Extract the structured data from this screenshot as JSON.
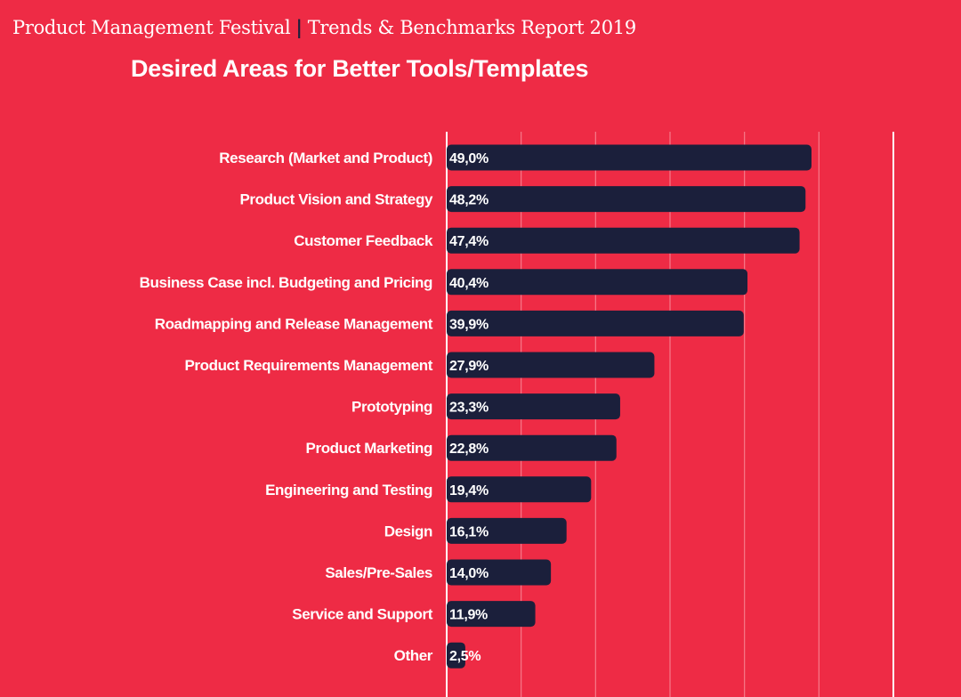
{
  "header": {
    "left": "Product Management Festival",
    "separator": "|",
    "right": "Trends & Benchmarks Report 2019"
  },
  "colors": {
    "background": "#ee2b45",
    "bar": "#1b1f3b",
    "text": "#ffffff"
  },
  "chart_data": {
    "type": "bar",
    "orientation": "horizontal",
    "title": "Desired Areas for Better Tools/Templates",
    "categories": [
      "Research (Market and Product)",
      "Product Vision and Strategy",
      "Customer Feedback",
      "Business Case incl. Budgeting and Pricing",
      "Roadmapping and Release Management",
      "Product Requirements Management",
      "Prototyping",
      "Product Marketing",
      "Engineering and Testing",
      "Design",
      "Sales/Pre-Sales",
      "Service and Support",
      "Other"
    ],
    "values": [
      49.0,
      48.2,
      47.4,
      40.4,
      39.9,
      27.9,
      23.3,
      22.8,
      19.4,
      16.1,
      14.0,
      11.9,
      2.5
    ],
    "data_labels": [
      "49,0%",
      "48,2%",
      "47,4%",
      "40,4%",
      "39,9%",
      "27,9%",
      "23,3%",
      "22,8%",
      "19,4%",
      "16,1%",
      "14,0%",
      "11,9%",
      "2,5%"
    ],
    "xlim": [
      0,
      60
    ],
    "grid": true,
    "grid_step": 10
  }
}
